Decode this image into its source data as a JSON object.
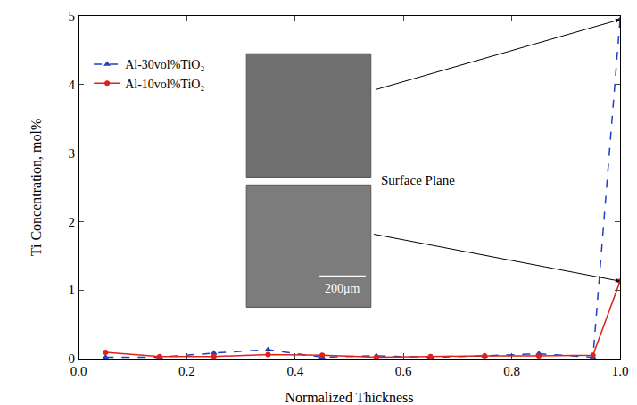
{
  "chart_data": {
    "type": "line",
    "x_label": "Normalized Thickness",
    "y_label": "Ti Concentration, mol%",
    "series": [
      {
        "name": "Al-30vol%TiO₂",
        "color": "#1f3fbf",
        "line_style": "dash",
        "marker": "triangle-up",
        "x": [
          0.05,
          0.15,
          0.25,
          0.35,
          0.45,
          0.55,
          0.65,
          0.75,
          0.85,
          0.95,
          1.0
        ],
        "values": [
          0.02,
          0.02,
          0.08,
          0.13,
          0.02,
          0.04,
          0.02,
          0.04,
          0.07,
          0.02,
          4.95
        ]
      },
      {
        "name": "Al-10vol%TiO₂",
        "color": "#e0201a",
        "line_style": "solid",
        "marker": "circle",
        "x": [
          0.05,
          0.15,
          0.25,
          0.35,
          0.45,
          0.55,
          0.65,
          0.75,
          0.85,
          0.95,
          1.0
        ],
        "values": [
          0.09,
          0.03,
          0.03,
          0.06,
          0.05,
          0.02,
          0.03,
          0.04,
          0.04,
          0.05,
          1.13
        ]
      }
    ],
    "xlim": [
      0,
      1
    ],
    "xticks": [
      {
        "value": 0,
        "label": "0.0"
      },
      0.2,
      0.4,
      0.6,
      0.8,
      {
        "value": 1,
        "label": "1.0"
      }
    ],
    "ylim": [
      0,
      5
    ],
    "yticks": [
      0,
      1,
      2,
      3,
      4,
      5
    ],
    "grid": false,
    "legend": "upper left",
    "annotations": [
      "Surface Plane",
      "200μm"
    ]
  }
}
